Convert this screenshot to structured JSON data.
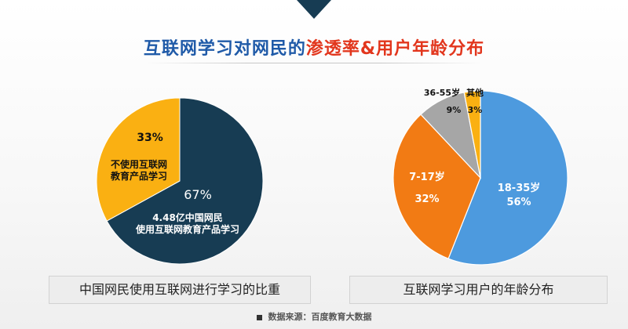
{
  "title": {
    "part1": "互联网学习对网民的",
    "part2": "渗透率&用户年龄分布"
  },
  "colors": {
    "navy": "#173c53",
    "gold": "#fab012",
    "blue": "#4d9ade",
    "orange": "#f27b14",
    "gray": "#a6a6a6",
    "title_blue": "#1f5aa8",
    "title_red": "#e2361d"
  },
  "chart_data": [
    {
      "type": "pie",
      "title": "中国网民使用互联网进行学习的比重",
      "slices": [
        {
          "name": "4.48亿中国网民\n使用互联网教育产品学习",
          "value": 67,
          "label": "67%",
          "color": "#173c53"
        },
        {
          "name": "不使用互联网\n教育产品学习",
          "value": 33,
          "label": "33%",
          "color": "#fab012"
        }
      ]
    },
    {
      "type": "pie",
      "title": "互联网学习用户的年龄分布",
      "slices": [
        {
          "name": "18-35岁",
          "value": 56,
          "label": "56%",
          "color": "#4d9ade"
        },
        {
          "name": "7-17岁",
          "value": 32,
          "label": "32%",
          "color": "#f27b14"
        },
        {
          "name": "36-55岁",
          "value": 9,
          "label": "9%",
          "color": "#a6a6a6"
        },
        {
          "name": "其他",
          "value": 3,
          "label": "3%",
          "color": "#fab012"
        }
      ]
    }
  ],
  "source": "数据来源：百度教育大数据"
}
